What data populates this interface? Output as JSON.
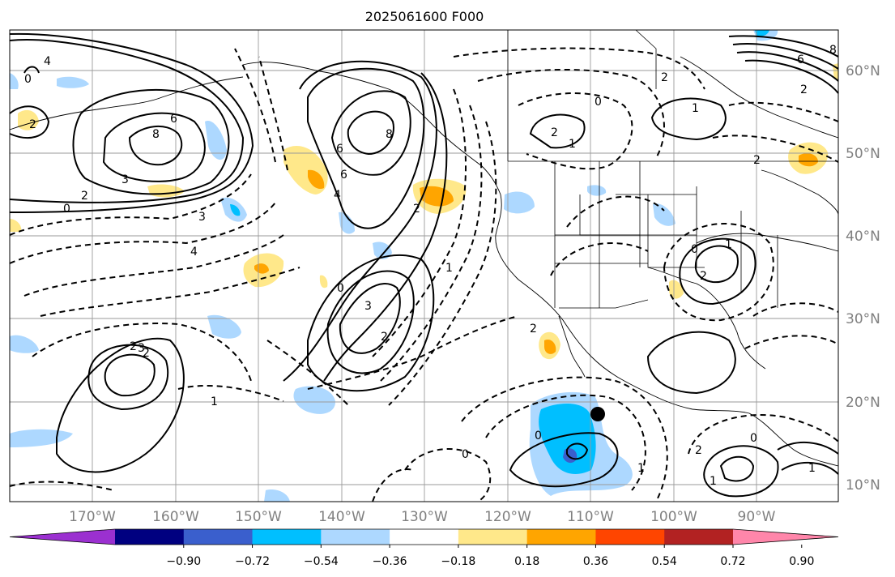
{
  "title": "2025061600 F000",
  "lat_labels": [
    "60°N",
    "50°N",
    "40°N",
    "30°N",
    "20°N",
    "10°N"
  ],
  "lon_labels": [
    "170°W",
    "160°W",
    "150°W",
    "140°W",
    "130°W",
    "120°W",
    "110°W",
    "100°W",
    "90°W"
  ],
  "colorbar": {
    "ticks": [
      "−0.90",
      "−0.72",
      "−0.54",
      "−0.36",
      "−0.18",
      "0.18",
      "0.36",
      "0.54",
      "0.72",
      "0.90"
    ],
    "colors": [
      "#9b30d0",
      "#000080",
      "#3a5fcd",
      "#00bfff",
      "#add8ff",
      "#ffffff",
      "#ffe88a",
      "#ffa500",
      "#ff4500",
      "#b22222",
      "#ff86aa"
    ]
  },
  "contour_labels": [
    "4",
    "6",
    "8",
    "3",
    "2",
    "0",
    "3",
    "4",
    "2",
    "0",
    "6",
    "8",
    "6",
    "4",
    "2",
    "3",
    "2",
    "1",
    "0",
    "2",
    "1",
    "0",
    "2",
    "6",
    "8",
    "2",
    "1",
    "2",
    "1",
    "0",
    "2",
    "3",
    "2",
    "1",
    "2",
    "0",
    "1",
    "2",
    "1",
    "0",
    "1",
    "2",
    "0"
  ],
  "marker": "storm-center-dot"
}
